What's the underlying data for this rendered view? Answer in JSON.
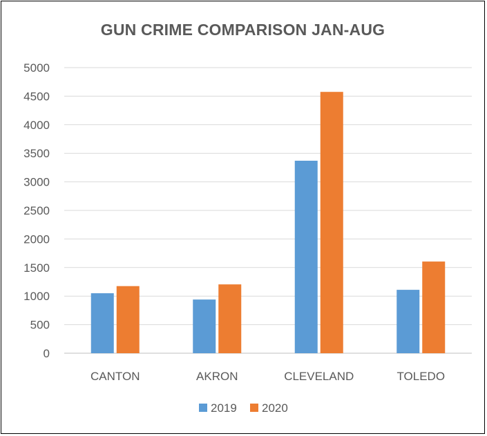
{
  "chart_data": {
    "type": "bar",
    "title": "GUN CRIME COMPARISON JAN-AUG",
    "categories": [
      "CANTON",
      "AKRON",
      "CLEVELAND",
      "TOLEDO"
    ],
    "series": [
      {
        "name": "2019",
        "color": "#5B9BD5",
        "values": [
          1050,
          940,
          3370,
          1110
        ]
      },
      {
        "name": "2020",
        "color": "#ED7D31",
        "values": [
          1175,
          1205,
          4575,
          1605
        ]
      }
    ],
    "ylim": [
      0,
      5000
    ],
    "yticks": [
      "0",
      "500",
      "1000",
      "1500",
      "2000",
      "2500",
      "3000",
      "3500",
      "4000",
      "4500",
      "5000"
    ],
    "grid": true,
    "legend": "bottom"
  }
}
